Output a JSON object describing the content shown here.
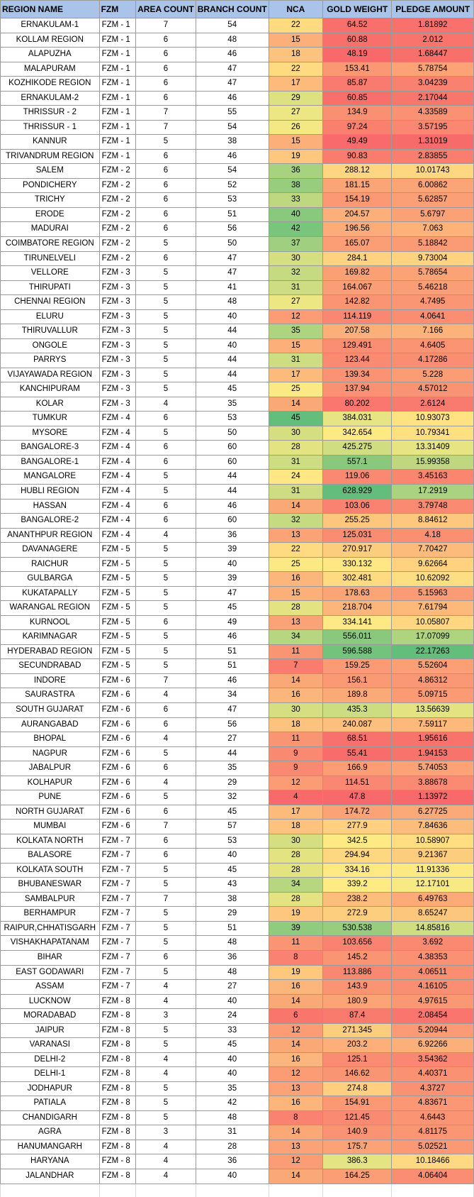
{
  "colors": {
    "header_bg": "#a9c4e8",
    "scale_low": "#f8696b",
    "scale_mid": "#ffeb84",
    "scale_high": "#63be7b"
  },
  "headers": [
    "REGION NAME",
    "FZM",
    "AREA COUNT",
    "BRANCH COUNT",
    "NCA",
    "GOLD WEIGHT",
    "PLEDGE AMOUNT"
  ],
  "rows": [
    [
      "ERNAKULAM-1",
      "FZM - 1",
      "7",
      "54",
      "22",
      "64.52",
      "1.81892"
    ],
    [
      "KOLLAM REGION",
      "FZM - 1",
      "6",
      "48",
      "15",
      "60.88",
      "2.012"
    ],
    [
      "ALAPUZHA",
      "FZM - 1",
      "6",
      "46",
      "18",
      "48.19",
      "1.68447"
    ],
    [
      "MALAPURAM",
      "FZM - 1",
      "6",
      "47",
      "22",
      "153.41",
      "5.78754"
    ],
    [
      "KOZHIKODE REGION",
      "FZM - 1",
      "6",
      "47",
      "17",
      "85.87",
      "3.04239"
    ],
    [
      "ERNAKULAM-2",
      "FZM - 1",
      "6",
      "46",
      "29",
      "60.85",
      "2.17044"
    ],
    [
      "THRISSUR - 2",
      "FZM - 1",
      "7",
      "55",
      "27",
      "134.9",
      "4.33589"
    ],
    [
      "THRISSUR - 1",
      "FZM - 1",
      "7",
      "54",
      "26",
      "97.24",
      "3.57195"
    ],
    [
      "KANNUR",
      "FZM - 1",
      "5",
      "38",
      "15",
      "49.49",
      "1.31019"
    ],
    [
      "TRIVANDRUM REGION",
      "FZM - 1",
      "6",
      "46",
      "19",
      "90.83",
      "2.83855"
    ],
    [
      "SALEM",
      "FZM - 2",
      "6",
      "54",
      "36",
      "288.12",
      "10.01743"
    ],
    [
      "PONDICHERY",
      "FZM - 2",
      "6",
      "52",
      "38",
      "181.15",
      "6.00862"
    ],
    [
      "TRICHY",
      "FZM - 2",
      "6",
      "53",
      "33",
      "154.19",
      "5.62857"
    ],
    [
      "ERODE",
      "FZM - 2",
      "6",
      "51",
      "40",
      "204.57",
      "5.6797"
    ],
    [
      "MADURAI",
      "FZM - 2",
      "6",
      "56",
      "42",
      "196.56",
      "7.063"
    ],
    [
      "COIMBATORE REGION",
      "FZM - 2",
      "5",
      "50",
      "37",
      "165.07",
      "5.18842"
    ],
    [
      "TIRUNELVELI",
      "FZM - 2",
      "6",
      "47",
      "30",
      "284.1",
      "9.73004"
    ],
    [
      "VELLORE",
      "FZM - 3",
      "5",
      "47",
      "32",
      "169.82",
      "5.78654"
    ],
    [
      "THIRUPATI",
      "FZM - 3",
      "5",
      "41",
      "31",
      "164.067",
      "5.46218"
    ],
    [
      "CHENNAI REGION",
      "FZM - 3",
      "5",
      "48",
      "27",
      "142.82",
      "4.7495"
    ],
    [
      "ELURU",
      "FZM - 3",
      "5",
      "40",
      "12",
      "114.119",
      "4.0641"
    ],
    [
      "THIRUVALLUR",
      "FZM - 3",
      "5",
      "44",
      "35",
      "207.58",
      "7.166"
    ],
    [
      "ONGOLE",
      "FZM - 3",
      "5",
      "40",
      "15",
      "129.491",
      "4.6405"
    ],
    [
      "PARRYS",
      "FZM - 3",
      "5",
      "44",
      "31",
      "123.44",
      "4.17286"
    ],
    [
      "VIJAYAWADA REGION",
      "FZM - 3",
      "5",
      "44",
      "17",
      "139.34",
      "5.228"
    ],
    [
      "KANCHIPURAM",
      "FZM - 3",
      "5",
      "45",
      "25",
      "137.94",
      "4.57012"
    ],
    [
      "KOLAR",
      "FZM - 3",
      "4",
      "35",
      "14",
      "80.202",
      "2.6124"
    ],
    [
      "TUMKUR",
      "FZM - 4",
      "6",
      "53",
      "45",
      "384.031",
      "10.93073"
    ],
    [
      "MYSORE",
      "FZM - 4",
      "5",
      "50",
      "30",
      "342.654",
      "10.79341"
    ],
    [
      "BANGALORE-3",
      "FZM - 4",
      "6",
      "60",
      "28",
      "425.275",
      "13.31409"
    ],
    [
      "BANGALORE-1",
      "FZM - 4",
      "6",
      "60",
      "31",
      "557.1",
      "15.99358"
    ],
    [
      "MANGALORE",
      "FZM - 4",
      "5",
      "44",
      "24",
      "119.06",
      "3.45163"
    ],
    [
      "HUBLI REGION",
      "FZM - 4",
      "5",
      "44",
      "31",
      "628.929",
      "17.2919"
    ],
    [
      "HASSAN",
      "FZM - 4",
      "6",
      "46",
      "14",
      "103.06",
      "3.79748"
    ],
    [
      "BANGALORE-2",
      "FZM - 4",
      "6",
      "60",
      "32",
      "255.25",
      "8.84612"
    ],
    [
      "ANANTHPUR REGION",
      "FZM - 4",
      "4",
      "36",
      "13",
      "125.031",
      "4.18"
    ],
    [
      "DAVANAGERE",
      "FZM - 5",
      "5",
      "39",
      "22",
      "270.917",
      "7.70427"
    ],
    [
      "RAICHUR",
      "FZM - 5",
      "5",
      "40",
      "25",
      "330.132",
      "9.62664"
    ],
    [
      "GULBARGA",
      "FZM - 5",
      "5",
      "39",
      "16",
      "302.481",
      "10.62092"
    ],
    [
      "KUKATAPALLY",
      "FZM - 5",
      "5",
      "47",
      "15",
      "178.63",
      "5.15963"
    ],
    [
      "WARANGAL REGION",
      "FZM - 5",
      "5",
      "45",
      "28",
      "218.704",
      "7.61794"
    ],
    [
      "KURNOOL",
      "FZM - 5",
      "6",
      "49",
      "13",
      "334.141",
      "10.05807"
    ],
    [
      "KARIMNAGAR",
      "FZM - 5",
      "5",
      "46",
      "34",
      "556.011",
      "17.07099"
    ],
    [
      "HYDERABAD REGION",
      "FZM - 5",
      "5",
      "51",
      "11",
      "596.588",
      "22.17263"
    ],
    [
      "SECUNDRABAD",
      "FZM - 5",
      "5",
      "51",
      "7",
      "159.25",
      "5.52604"
    ],
    [
      "INDORE",
      "FZM - 6",
      "7",
      "46",
      "14",
      "156.1",
      "4.86312"
    ],
    [
      "SAURASTRA",
      "FZM - 6",
      "4",
      "34",
      "16",
      "189.8",
      "5.09715"
    ],
    [
      "SOUTH GUJARAT",
      "FZM - 6",
      "6",
      "47",
      "30",
      "435.3",
      "13.56639"
    ],
    [
      "AURANGABAD",
      "FZM - 6",
      "6",
      "56",
      "18",
      "240.087",
      "7.59117"
    ],
    [
      "BHOPAL",
      "FZM - 6",
      "4",
      "27",
      "11",
      "68.51",
      "1.95616"
    ],
    [
      "NAGPUR",
      "FZM - 6",
      "5",
      "44",
      "9",
      "55.41",
      "1.94153"
    ],
    [
      "JABALPUR",
      "FZM - 6",
      "6",
      "35",
      "9",
      "166.9",
      "5.74053"
    ],
    [
      "KOLHAPUR",
      "FZM - 6",
      "4",
      "29",
      "12",
      "114.51",
      "3.88678"
    ],
    [
      "PUNE",
      "FZM - 6",
      "5",
      "32",
      "4",
      "47.8",
      "1.13972"
    ],
    [
      "NORTH GUJARAT",
      "FZM - 6",
      "6",
      "45",
      "17",
      "174.72",
      "6.27725"
    ],
    [
      "MUMBAI",
      "FZM - 6",
      "7",
      "57",
      "18",
      "277.9",
      "7.84636"
    ],
    [
      "KOLKATA NORTH",
      "FZM - 7",
      "6",
      "53",
      "30",
      "342.5",
      "10.58907"
    ],
    [
      "BALASORE",
      "FZM - 7",
      "6",
      "40",
      "28",
      "294.94",
      "9.21367"
    ],
    [
      "KOLKATA SOUTH",
      "FZM - 7",
      "5",
      "45",
      "28",
      "334.16",
      "11.91336"
    ],
    [
      "BHUBANESWAR",
      "FZM - 7",
      "5",
      "43",
      "34",
      "339.2",
      "12.17101"
    ],
    [
      "SAMBALPUR",
      "FZM - 7",
      "7",
      "38",
      "28",
      "238.2",
      "6.49763"
    ],
    [
      "BERHAMPUR",
      "FZM - 7",
      "5",
      "29",
      "19",
      "272.9",
      "8.65247"
    ],
    [
      "RAIPUR,CHHATISGARH",
      "FZM - 7",
      "5",
      "51",
      "39",
      "530.538",
      "14.85816"
    ],
    [
      "VISHAKHAPATANAM",
      "FZM - 7",
      "5",
      "48",
      "11",
      "103.656",
      "3.692"
    ],
    [
      "BIHAR",
      "FZM - 7",
      "6",
      "36",
      "8",
      "145.2",
      "4.38353"
    ],
    [
      "EAST GODAWARI",
      "FZM - 7",
      "5",
      "48",
      "19",
      "113.886",
      "4.06511"
    ],
    [
      "ASSAM",
      "FZM - 7",
      "4",
      "27",
      "16",
      "143.9",
      "4.16105"
    ],
    [
      "LUCKNOW",
      "FZM - 8",
      "4",
      "40",
      "14",
      "180.9",
      "4.97615"
    ],
    [
      "MORADABAD",
      "FZM - 8",
      "3",
      "24",
      "6",
      "87.4",
      "2.08454"
    ],
    [
      "JAIPUR",
      "FZM - 8",
      "5",
      "33",
      "12",
      "271.345",
      "5.20944"
    ],
    [
      "VARANASI",
      "FZM - 8",
      "5",
      "45",
      "14",
      "203.2",
      "6.92266"
    ],
    [
      "DELHI-2",
      "FZM - 8",
      "4",
      "40",
      "16",
      "125.1",
      "3.54362"
    ],
    [
      "DELHI-1",
      "FZM - 8",
      "4",
      "40",
      "12",
      "146.62",
      "4.40371"
    ],
    [
      "JODHAPUR",
      "FZM - 8",
      "5",
      "35",
      "13",
      "274.8",
      "4.3727"
    ],
    [
      "PATIALA",
      "FZM - 8",
      "5",
      "42",
      "16",
      "154.91",
      "4.83671"
    ],
    [
      "CHANDIGARH",
      "FZM - 8",
      "5",
      "48",
      "8",
      "121.45",
      "4.6443"
    ],
    [
      "AGRA",
      "FZM - 8",
      "3",
      "31",
      "14",
      "140.9",
      "4.81175"
    ],
    [
      "HANUMANGARH",
      "FZM - 8",
      "4",
      "28",
      "13",
      "175.7",
      "5.02521"
    ],
    [
      "HARYANA",
      "FZM - 8",
      "4",
      "36",
      "12",
      "386.3",
      "10.18466"
    ],
    [
      "JALANDHAR",
      "FZM - 8",
      "4",
      "40",
      "14",
      "164.25",
      "4.06404"
    ]
  ]
}
